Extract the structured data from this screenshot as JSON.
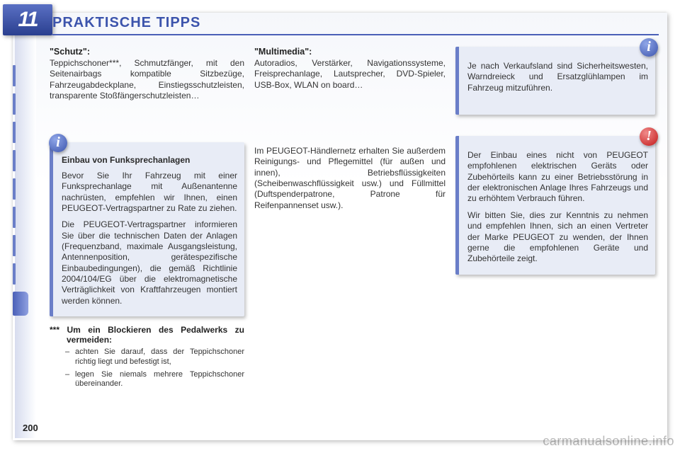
{
  "chapter_number": "11",
  "header_title": "PRAKTISCHE TIPPS",
  "page_number": "200",
  "watermark": "carmanualsonline.info",
  "rail_ticks": [
    74,
    114,
    154,
    194,
    234,
    274,
    314,
    354,
    394
  ],
  "rail_active_index": 8,
  "col1": {
    "schutz": {
      "title": "\"Schutz\":",
      "body": "Teppichschoner***, Schmutzfänger, mit den Seitenairbags kompatible Sitzbezüge, Fahrzeugabdeckplane, Einstiegsschutz­leisten, transparente Stoßfängerschutz­leisten…"
    },
    "einbau_box": {
      "icon": "i",
      "title": "Einbau von Funksprechanlagen",
      "p1": "Bevor Sie Ihr Fahrzeug mit einer Funksprechanlage mit Außenan­tenne nachrüsten, empfehlen wir Ihnen, einen PEUGEOT-Vertrags­partner zu Rate zu ziehen.",
      "p2": "Die PEUGEOT-Vertragspartner in­formieren Sie über die technischen Daten der Anlagen (Frequenzband, maximale Ausgangsleistung, An­tennenposition, gerätespezifische Einbaubedingungen), die gemäß Richtlinie 2004/104/EG über die elektromagnetische Verträglichkeit von Kraftfahrzeugen montiert wer­den können."
    },
    "notes": {
      "lead": "*** Um ein Blockieren des Pedalwerks zu vermeiden:",
      "items": [
        "achten Sie darauf, dass der Teppichschoner richtig liegt und befestigt ist,",
        "legen Sie niemals mehrere Teppichschoner übereinander."
      ]
    }
  },
  "col2": {
    "multimedia": {
      "title": "\"Multimedia\":",
      "body": "Autoradios, Verstärker, Navigations­systeme, Freisprechanlage, Lautspre­cher, DVD-Spieler, USB-Box, WLAN on board…"
    },
    "haendler": "Im PEUGEOT-Händlernetz erhalten Sie außerdem Reinigungs- und Pflegemittel (für außen und innen), Betriebsflüssig­keiten (Scheibenwaschflüssigkeit usw.) und Füllmittel (Duftspenderpatrone, Pa­trone für Reifenpannenset usw.)."
  },
  "col3": {
    "info_box": {
      "icon": "i",
      "body": "Je nach Verkaufsland sind Sicherheitswesten, Warndreieck und Ersatzglühlampen im Fahrzeug mitzuführen."
    },
    "warn_box": {
      "icon": "!",
      "p1": "Der Einbau eines nicht von PEUGEOT empfohlenen elektrischen Geräts oder Zubehörteils kann zu einer Betriebs­störung in der elektronischen Anlage Ihres Fahrzeugs und zu erhöhtem Ver­brauch führen.",
      "p2": "Wir bitten Sie, dies zur Kenntnis zu nehmen und empfehlen Ihnen, sich an einen Vertreter der Marke PEUGEOT zu wenden, der Ihnen gerne die empfohlenen Geräte und Zubehörteile zeigt."
    }
  },
  "colors": {
    "accent": "#4a60b8",
    "info_bubble": "#3c54ac",
    "warn_bubble": "#c31818",
    "callout_bg": "#e8ecf6"
  }
}
